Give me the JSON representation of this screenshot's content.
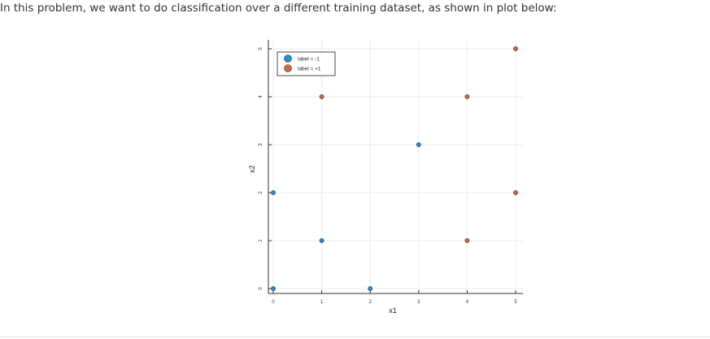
{
  "intro_text": "In this problem, we want to do classification over a different training dataset, as shown in plot below:",
  "chart_data": {
    "type": "scatter",
    "title": "",
    "xlabel": "x1",
    "ylabel": "x2",
    "xlim": [
      0,
      5
    ],
    "ylim": [
      0,
      5
    ],
    "xticks": [
      "0",
      "1",
      "2",
      "3",
      "4",
      "5"
    ],
    "yticks": [
      "0",
      "1",
      "2",
      "3",
      "4",
      "5"
    ],
    "grid": true,
    "legend_position": "top-left",
    "series": [
      {
        "name": "label = -1",
        "color": "#1f8fd6",
        "points": [
          [
            0,
            0
          ],
          [
            0,
            2
          ],
          [
            1,
            1
          ],
          [
            2,
            0
          ],
          [
            3,
            3
          ]
        ]
      },
      {
        "name": "label = +1",
        "color": "#d2663f",
        "points": [
          [
            1,
            4
          ],
          [
            4,
            4
          ],
          [
            5,
            5
          ],
          [
            5,
            2
          ],
          [
            4,
            1
          ]
        ]
      }
    ]
  }
}
